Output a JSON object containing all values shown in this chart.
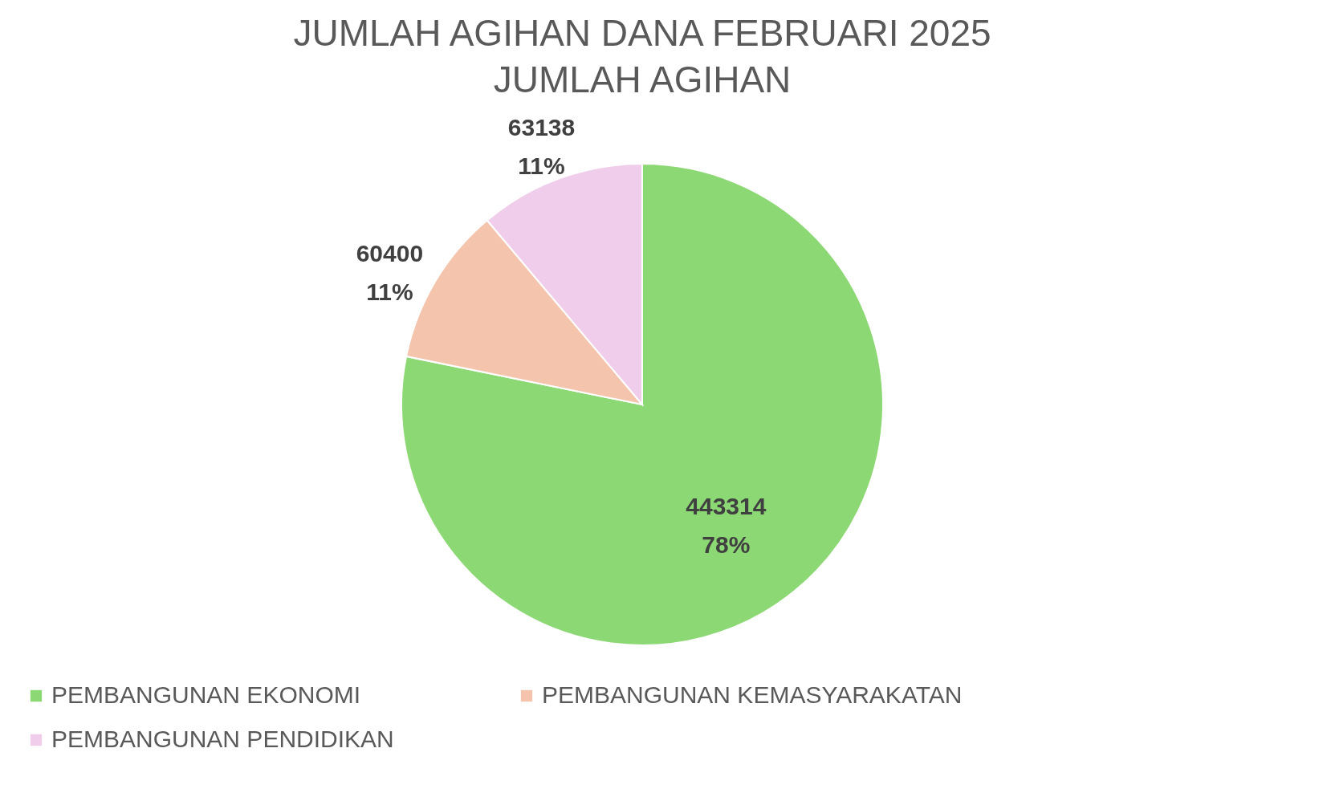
{
  "chart_data": {
    "type": "pie",
    "title": "JUMLAH AGIHAN DANA FEBRUARI 2025 JUMLAH AGIHAN",
    "categories": [
      "PEMBANGUNAN EKONOMI",
      "PEMBANGUNAN KEMASYARAKATAN",
      "PEMBANGUNAN PENDIDIKAN"
    ],
    "values": [
      443314,
      60400,
      63138
    ],
    "colors": [
      "#8cd874",
      "#f4c4ad",
      "#efcdeb"
    ],
    "value_labels": [
      "443314\n78%",
      "60400\n11%",
      "63138\n11%"
    ],
    "legend": "bottom"
  }
}
